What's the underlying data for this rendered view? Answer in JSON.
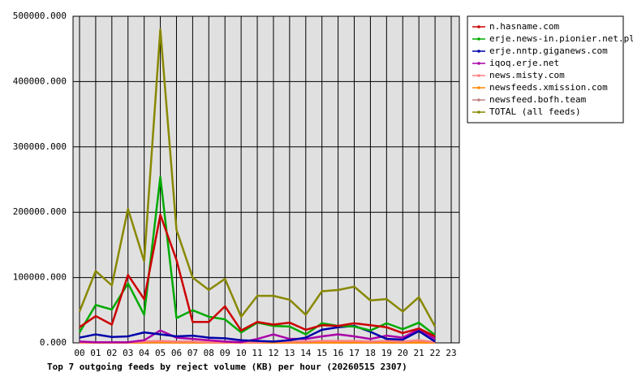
{
  "chart_data": {
    "type": "line",
    "title": "Top 7 outgoing feeds by reject volume (KB) per hour (20260515 2307)",
    "categories": [
      "00",
      "01",
      "02",
      "03",
      "04",
      "05",
      "06",
      "07",
      "08",
      "09",
      "10",
      "11",
      "12",
      "13",
      "14",
      "15",
      "16",
      "17",
      "18",
      "19",
      "20",
      "21",
      "22",
      "23"
    ],
    "ylim": [
      0,
      500000
    ],
    "yticks": [
      {
        "value": 0,
        "label": "0.000"
      },
      {
        "value": 100000,
        "label": "100000.000"
      },
      {
        "value": 200000,
        "label": "200000.000"
      },
      {
        "value": 300000,
        "label": "300000.000"
      },
      {
        "value": 400000,
        "label": "400000.000"
      },
      {
        "value": 500000,
        "label": "500000.000"
      }
    ],
    "grid": true,
    "legend": "right",
    "series": [
      {
        "name": "n.hasname.com",
        "color": "#cc0000",
        "values": [
          24000,
          41000,
          28000,
          104000,
          67000,
          196000,
          127000,
          32000,
          32000,
          56000,
          19000,
          32000,
          28000,
          31000,
          20000,
          27000,
          26000,
          30000,
          27000,
          24000,
          15000,
          22000,
          10000,
          null
        ]
      },
      {
        "name": "erje.news-in.pionier.net.pl",
        "color": "#00aa00",
        "values": [
          16000,
          58000,
          51000,
          91000,
          43000,
          254000,
          38000,
          50000,
          40000,
          36000,
          16000,
          31000,
          26000,
          25000,
          13000,
          30000,
          26000,
          25000,
          19000,
          30000,
          21000,
          31000,
          12000,
          null
        ]
      },
      {
        "name": "erje.nntp.giganews.com",
        "color": "#0000aa",
        "values": [
          8000,
          13000,
          9000,
          10000,
          16000,
          13000,
          10000,
          11000,
          8000,
          7000,
          4000,
          3000,
          2000,
          4000,
          8000,
          20000,
          24000,
          26000,
          17000,
          6000,
          5000,
          18000,
          2000,
          null
        ]
      },
      {
        "name": "iqoq.erje.net",
        "color": "#aa00aa",
        "values": [
          2000,
          1000,
          1000,
          1000,
          4000,
          19000,
          8000,
          6000,
          4000,
          2000,
          1000,
          6000,
          13000,
          6000,
          6000,
          10000,
          13000,
          10000,
          6000,
          11000,
          8000,
          21000,
          6000,
          null
        ]
      },
      {
        "name": "news.misty.com",
        "color": "#ff7f7f",
        "values": [
          1000,
          1000,
          1000,
          1000,
          2000,
          3000,
          2000,
          2000,
          1000,
          1000,
          1000,
          1000,
          2000,
          2000,
          2000,
          3000,
          3000,
          3000,
          2000,
          3000,
          2000,
          4000,
          1000,
          null
        ]
      },
      {
        "name": "newsfeeds.xmission.com",
        "color": "#ff8800",
        "values": [
          500,
          500,
          500,
          500,
          500,
          1000,
          500,
          500,
          500,
          500,
          500,
          500,
          500,
          500,
          500,
          500,
          500,
          500,
          500,
          500,
          500,
          500,
          500,
          null
        ]
      },
      {
        "name": "newsfeed.bofh.team",
        "color": "#c08080",
        "values": [
          500,
          500,
          500,
          500,
          500,
          500,
          500,
          500,
          500,
          500,
          500,
          500,
          500,
          500,
          500,
          500,
          500,
          500,
          500,
          500,
          500,
          500,
          500,
          null
        ]
      },
      {
        "name": "TOTAL (all feeds)",
        "color": "#888800",
        "values": [
          48000,
          110000,
          88000,
          205000,
          125000,
          480000,
          173000,
          100000,
          81000,
          98000,
          40000,
          72000,
          72000,
          66000,
          43000,
          79000,
          81000,
          86000,
          65000,
          67000,
          48000,
          70000,
          25000,
          null
        ]
      }
    ]
  }
}
